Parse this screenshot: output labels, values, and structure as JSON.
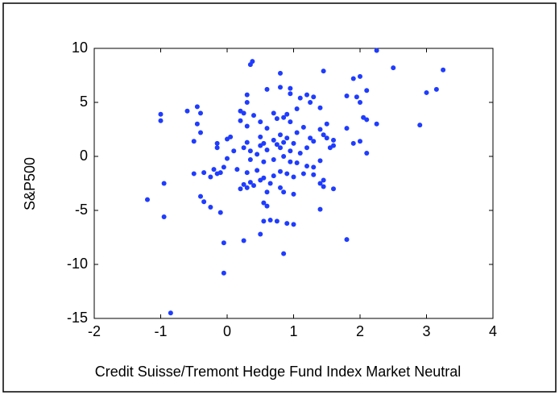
{
  "chart_data": {
    "type": "scatter",
    "xlabel": "Credit Suisse/Tremont Hedge Fund Index Market Neutral",
    "ylabel": "S&P500",
    "color": "#1f3cff",
    "xlim": [
      -2,
      4
    ],
    "xticks": [
      -2,
      -1,
      0,
      1,
      2,
      3,
      4
    ],
    "ylim": [
      -15,
      10
    ],
    "yticks": [
      -15,
      -10,
      -5,
      0,
      5,
      10
    ],
    "x": [
      2.25,
      0.35,
      0.38,
      2.5,
      3.25,
      0.8,
      1.45,
      1.9,
      2.0,
      3.15,
      3.0,
      0.95,
      0.95,
      0.8,
      0.6,
      2.1,
      1.2,
      1.3,
      1.1,
      1.25,
      0.3,
      0.3,
      1.8,
      1.95,
      2.0,
      -0.45,
      -0.6,
      -0.4,
      -1.0,
      -1.0,
      0.2,
      0.25,
      0.4,
      0.7,
      0.9,
      1.05,
      1.4,
      2.05,
      2.1,
      2.25,
      1.5,
      1.4,
      -0.45,
      -0.4,
      -0.5,
      0.2,
      0.3,
      0.5,
      0.6,
      0.75,
      0.85,
      0.95,
      1.15,
      1.05,
      1.8,
      1.9,
      2.0,
      2.1,
      1.45,
      1.5,
      1.6,
      1.6,
      1.55,
      1.25,
      1.3,
      2.9,
      -0.15,
      -0.15,
      0.0,
      0.05,
      0.3,
      0.25,
      0.35,
      0.5,
      0.55,
      0.5,
      0.6,
      0.7,
      0.75,
      0.8,
      0.85,
      0.9,
      0.95,
      0.8,
      1.0,
      1.1,
      1.2,
      0.1,
      0.0,
      0.35,
      0.45,
      0.55,
      0.7,
      0.85,
      0.95,
      1.05,
      1.2,
      1.3,
      1.4,
      -0.05,
      -0.2,
      -0.1,
      -0.15,
      -0.35,
      -0.5,
      -0.25,
      0.15,
      0.3,
      0.45,
      0.55,
      0.7,
      0.8,
      0.9,
      1.0,
      1.15,
      1.3,
      1.4,
      1.45,
      0.25,
      0.3,
      0.35,
      0.4,
      0.2,
      0.6,
      0.65,
      0.8,
      0.85,
      0.5,
      1.0,
      1.6,
      1.45,
      -0.4,
      -0.35,
      -0.25,
      -0.1,
      -1.2,
      -0.95,
      0.55,
      0.6,
      1.4,
      -0.95,
      0.55,
      0.75,
      0.9,
      1.0,
      0.65,
      0.5,
      0.25,
      1.8,
      -0.05,
      0.85,
      -0.05,
      -0.85
    ],
    "values": [
      9.8,
      8.5,
      8.8,
      8.2,
      8.0,
      7.7,
      7.9,
      7.2,
      7.4,
      6.2,
      5.9,
      6.3,
      5.8,
      6.4,
      6.2,
      6.1,
      5.7,
      5.5,
      5.4,
      5.0,
      5.7,
      5.0,
      5.6,
      5.5,
      5.0,
      4.6,
      4.2,
      4.0,
      3.9,
      3.3,
      4.2,
      4.0,
      3.8,
      4.0,
      3.9,
      4.4,
      4.5,
      3.6,
      3.4,
      3.0,
      3.0,
      2.5,
      3.0,
      2.2,
      1.4,
      3.3,
      2.8,
      3.2,
      2.6,
      3.5,
      3.6,
      3.2,
      2.7,
      2.2,
      2.6,
      1.2,
      1.4,
      0.3,
      2.0,
      1.7,
      1.5,
      1.0,
      0.8,
      1.7,
      1.4,
      2.9,
      1.2,
      0.8,
      1.6,
      1.8,
      1.3,
      0.8,
      0.5,
      1.8,
      1.2,
      1.0,
      0.6,
      1.5,
      1.1,
      0.8,
      1.3,
      1.7,
      0.5,
      2.0,
      1.2,
      0.3,
      0.8,
      0.5,
      -0.2,
      -0.3,
      0.2,
      -0.5,
      -0.3,
      0.0,
      -0.5,
      -0.6,
      -0.9,
      -1.0,
      -0.4,
      -1.0,
      -1.2,
      -1.5,
      -1.6,
      -1.5,
      -1.6,
      -1.9,
      -1.2,
      -1.5,
      -1.3,
      -2.0,
      -1.8,
      -1.4,
      -1.6,
      -1.9,
      -1.6,
      -1.7,
      -2.5,
      -2.2,
      -2.6,
      -2.9,
      -2.4,
      -2.7,
      -3.0,
      -3.3,
      -2.5,
      -2.9,
      -3.3,
      -2.2,
      -3.5,
      -3.0,
      -2.8,
      -3.7,
      -4.2,
      -4.7,
      -5.2,
      -4.0,
      -2.5,
      -4.3,
      -4.6,
      -4.9,
      -5.6,
      -6.0,
      -6.0,
      -6.2,
      -6.3,
      -5.9,
      -7.2,
      -7.8,
      -7.7,
      -8.0,
      -9.0,
      -10.8,
      -14.5
    ]
  }
}
